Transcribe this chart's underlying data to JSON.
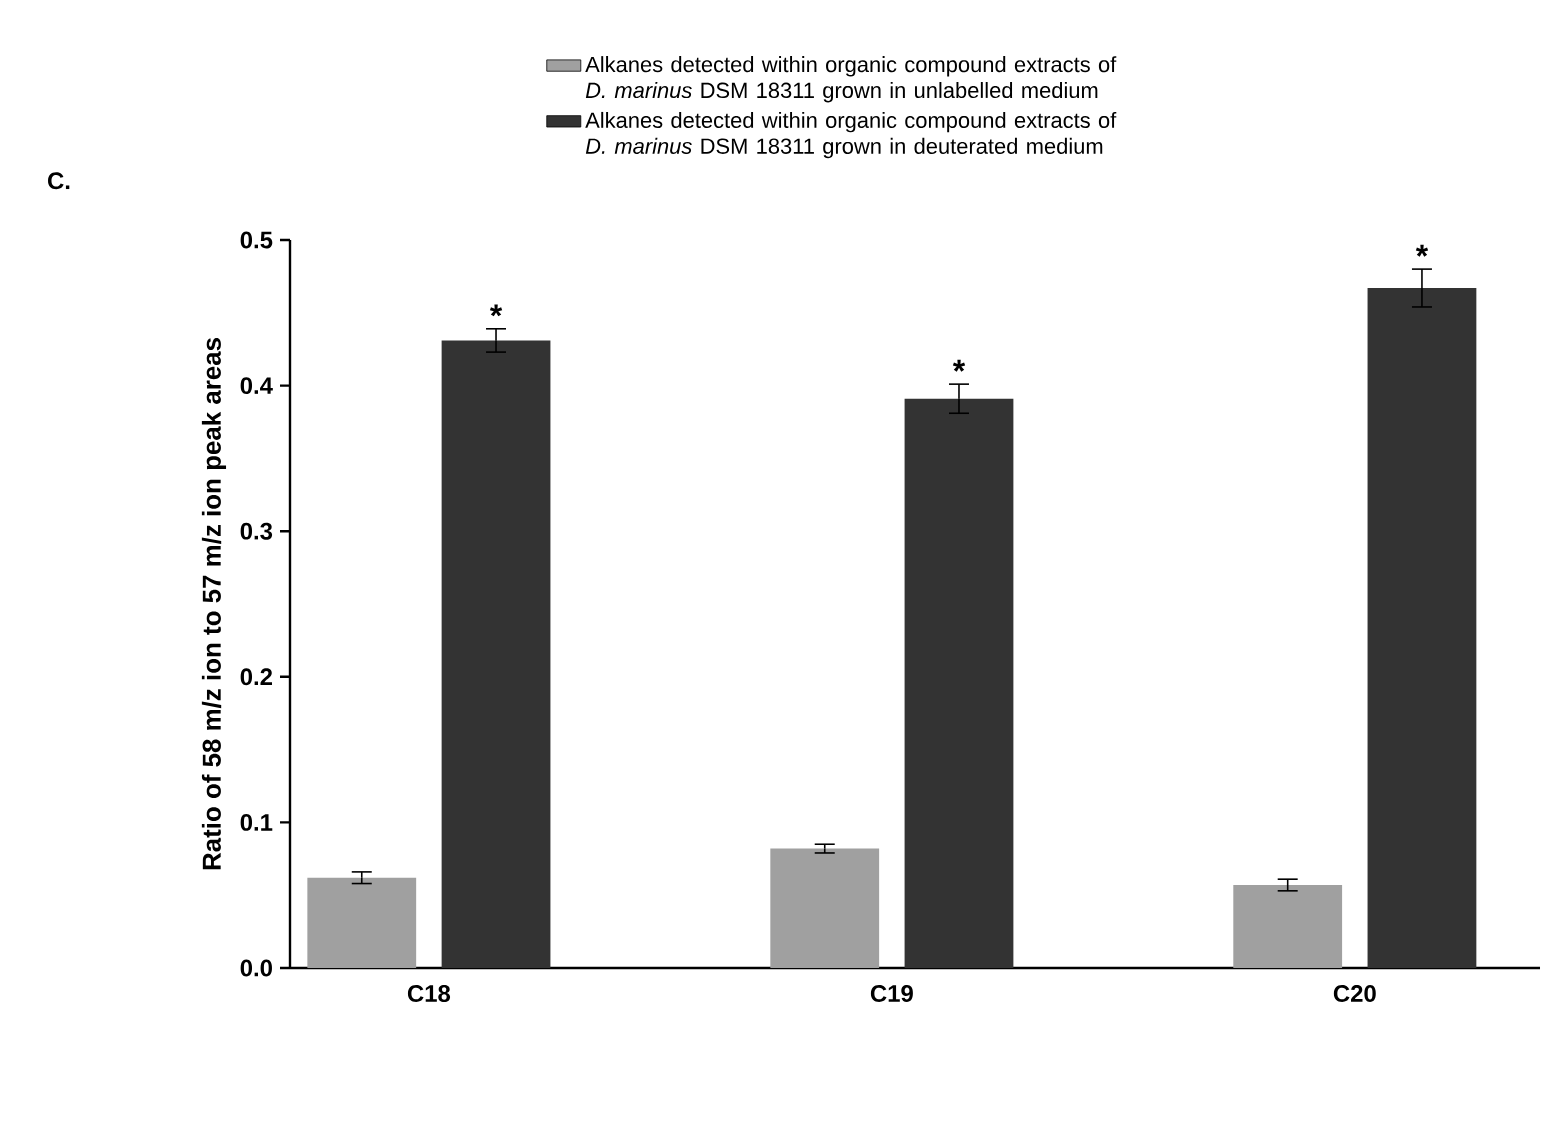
{
  "chart_data": {
    "type": "bar",
    "ylabel": "Ratio of 58 m/z ion to 57 m/z ion peak areas",
    "categories": [
      "C18",
      "C19",
      "C20"
    ],
    "series": [
      {
        "name": "Alkanes detected within organic compound extracts of *D. marinus* DSM 18311 grown in unlabelled medium",
        "color": "#a0a0a0",
        "values": [
          0.062,
          0.082,
          0.057
        ],
        "errors": [
          0.004,
          0.003,
          0.004
        ]
      },
      {
        "name": "Alkanes detected within organic compound extracts of *D. marinus* DSM 18311 grown in deuterated medium",
        "color": "#333333",
        "values": [
          0.431,
          0.391,
          0.467
        ],
        "errors": [
          0.008,
          0.01,
          0.013
        ],
        "value_labels": [
          "*",
          "*",
          "*"
        ]
      }
    ],
    "ylim": [
      0,
      0.5
    ],
    "yticks": [
      {
        "value": 0,
        "label": "0.0"
      },
      {
        "value": 0.1,
        "label": "0.1"
      },
      {
        "value": 0.2,
        "label": "0.2"
      },
      {
        "value": 0.3,
        "label": "0.3"
      },
      {
        "value": 0.4,
        "label": "0.4"
      },
      {
        "value": 0.5,
        "label": "0.5"
      }
    ],
    "legend": "top",
    "annotations": [
      "C."
    ]
  }
}
